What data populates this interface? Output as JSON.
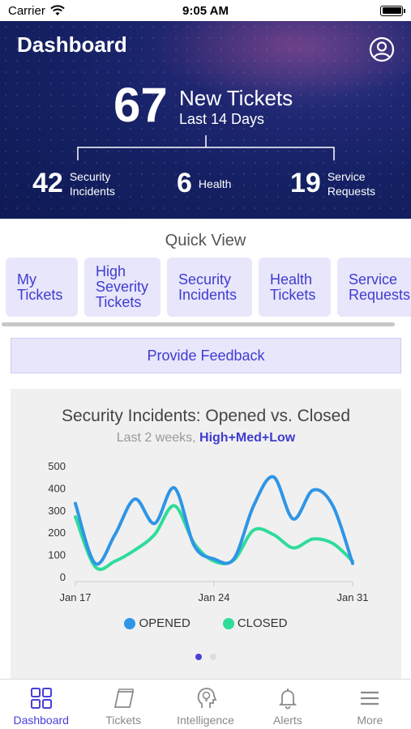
{
  "status_bar": {
    "carrier": "Carrier",
    "time": "9:05 AM"
  },
  "header": {
    "title": "Dashboard",
    "total_count": "67",
    "total_label": "New Tickets",
    "period": "Last 14 Days",
    "stats": [
      {
        "value": "42",
        "label": "Security\nIncidents"
      },
      {
        "value": "6",
        "label": "Health"
      },
      {
        "value": "19",
        "label": "Service\nRequests"
      }
    ]
  },
  "quick_view": {
    "title": "Quick View",
    "cards": [
      {
        "label": "My\nTickets"
      },
      {
        "label": "High\nSeverity\nTickets"
      },
      {
        "label": "Security\nIncidents"
      },
      {
        "label": "Health\nTickets"
      },
      {
        "label": "Service\nRequests"
      }
    ]
  },
  "feedback_label": "Provide Feedback",
  "chart_data": {
    "type": "line",
    "title": "Security Incidents: Opened vs. Closed",
    "subtitle_prefix": "Last 2 weeks, ",
    "subtitle_highlight": "High+Med+Low",
    "x_ticks": [
      "Jan 17",
      "Jan 24",
      "Jan 31"
    ],
    "y_ticks": [
      "0",
      "100",
      "200",
      "300",
      "400",
      "500"
    ],
    "ylim": [
      0,
      500
    ],
    "x": [
      17,
      18,
      19,
      20,
      21,
      22,
      23,
      24,
      25,
      26,
      27,
      28,
      29,
      30,
      31
    ],
    "series": [
      {
        "name": "OPENED",
        "color": "#2f95e6",
        "values": [
          330,
          60,
          190,
          350,
          240,
          400,
          140,
          80,
          80,
          320,
          450,
          260,
          390,
          320,
          60
        ]
      },
      {
        "name": "CLOSED",
        "color": "#2edc9a",
        "values": [
          270,
          45,
          70,
          120,
          190,
          320,
          150,
          70,
          75,
          210,
          190,
          130,
          170,
          150,
          70
        ]
      }
    ]
  },
  "pager": {
    "pages": 2,
    "active": 0
  },
  "tabs": [
    {
      "label": "Dashboard",
      "icon": "grid-icon",
      "active": true
    },
    {
      "label": "Tickets",
      "icon": "tickets-icon",
      "active": false
    },
    {
      "label": "Intelligence",
      "icon": "head-bulb-icon",
      "active": false
    },
    {
      "label": "Alerts",
      "icon": "bell-icon",
      "active": false
    },
    {
      "label": "More",
      "icon": "menu-icon",
      "active": false
    }
  ]
}
